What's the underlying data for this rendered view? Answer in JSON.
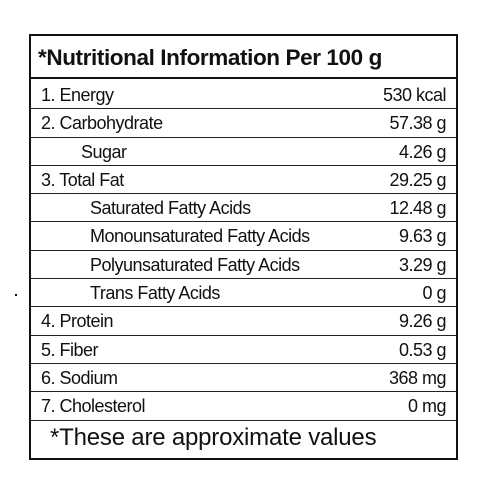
{
  "panel": {
    "title": "*Nutritional Information Per 100 g",
    "rows": [
      {
        "label": "1. Energy",
        "value": "530 kcal",
        "indent": 0
      },
      {
        "label": "2. Carbohydrate",
        "value": "57.38 g",
        "indent": 0
      },
      {
        "label": "Sugar",
        "value": "4.26 g",
        "indent": 1
      },
      {
        "label": "3. Total Fat",
        "value": "29.25 g",
        "indent": 0
      },
      {
        "label": "Saturated Fatty Acids",
        "value": "12.48 g",
        "indent": 2
      },
      {
        "label": "Monounsaturated Fatty Acids",
        "value": "9.63 g",
        "indent": 2
      },
      {
        "label": "Polyunsaturated Fatty Acids",
        "value": "3.29 g",
        "indent": 2
      },
      {
        "label": "Trans Fatty Acids",
        "value": "0 g",
        "indent": 2
      },
      {
        "label": "4. Protein",
        "value": "9.26 g",
        "indent": 0
      },
      {
        "label": "5. Fiber",
        "value": "0.53 g",
        "indent": 0
      },
      {
        "label": "6. Sodium",
        "value": "368 mg",
        "indent": 0
      },
      {
        "label": "7. Cholesterol",
        "value": "0 mg",
        "indent": 0
      }
    ],
    "footer": "*These are approximate values"
  }
}
